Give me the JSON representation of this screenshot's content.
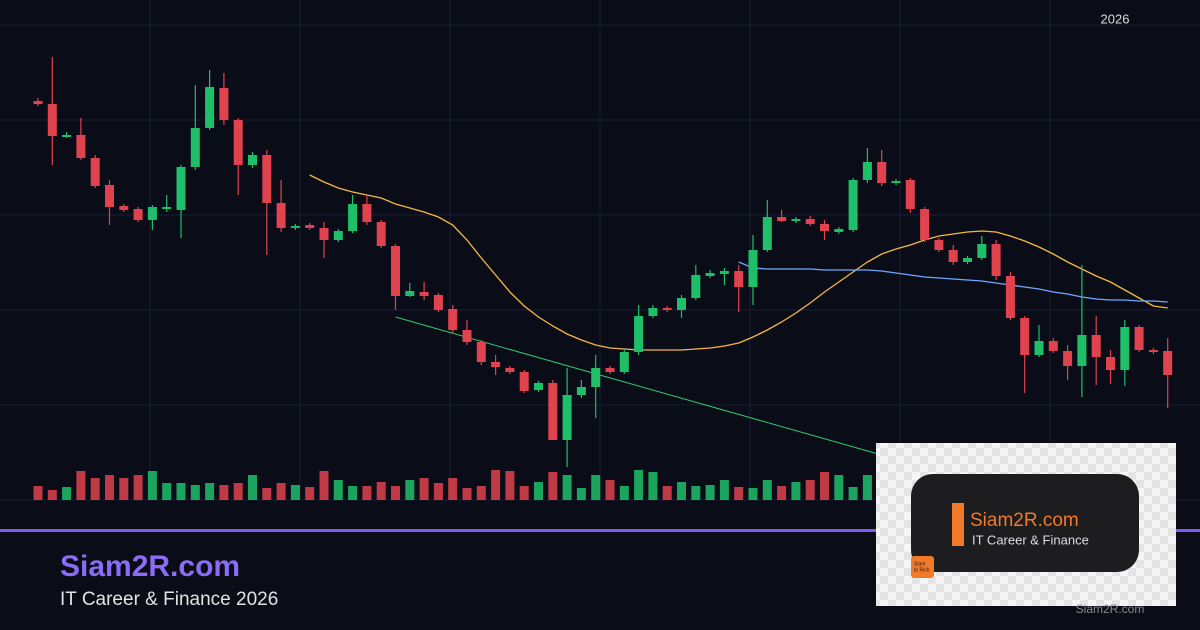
{
  "chart_data": {
    "type": "candlestick",
    "period_label": "2026",
    "up_color": "#1fbf6a",
    "down_color": "#e0434e",
    "ylim": [
      0,
      475
    ],
    "yticks": [
      0,
      95,
      190,
      285,
      380,
      475
    ],
    "grid": true,
    "open": [
      399,
      396,
      363,
      365,
      342,
      315,
      294,
      291,
      280,
      291,
      290,
      333,
      372,
      412,
      380,
      335,
      345,
      297,
      272,
      275,
      272,
      260,
      269,
      296,
      278,
      254,
      204,
      208,
      205,
      191,
      170,
      158,
      138,
      132,
      128,
      110,
      117,
      60,
      105,
      113,
      132,
      128,
      148,
      184,
      192,
      190,
      202,
      224,
      226,
      229,
      213,
      250,
      283,
      279,
      281,
      276,
      268,
      270,
      320,
      338,
      317,
      320,
      291,
      260,
      250,
      238,
      242,
      256,
      224,
      182,
      145,
      159,
      149,
      134,
      165,
      143,
      130,
      173,
      150,
      149
    ],
    "high": [
      402,
      443,
      368,
      382,
      345,
      320,
      296,
      293,
      295,
      305,
      335,
      415,
      430,
      427,
      382,
      348,
      350,
      320,
      276,
      277,
      278,
      271,
      305,
      305,
      280,
      256,
      217,
      218,
      207,
      195,
      180,
      160,
      145,
      134,
      130,
      119,
      120,
      132,
      120,
      145,
      134,
      150,
      195,
      195,
      194,
      205,
      235,
      230,
      232,
      235,
      265,
      300,
      290,
      283,
      284,
      280,
      273,
      322,
      352,
      350,
      321,
      322,
      293,
      262,
      255,
      244,
      264,
      260,
      228,
      184,
      175,
      162,
      155,
      235,
      184,
      150,
      180,
      175,
      152,
      162
    ],
    "low": [
      394,
      335,
      362,
      340,
      312,
      275,
      288,
      278,
      270,
      288,
      262,
      330,
      370,
      375,
      305,
      332,
      245,
      268,
      270,
      270,
      242,
      258,
      267,
      275,
      252,
      190,
      203,
      200,
      188,
      167,
      155,
      135,
      125,
      126,
      107,
      108,
      60,
      33,
      102,
      82,
      126,
      126,
      145,
      182,
      188,
      182,
      200,
      222,
      215,
      188,
      195,
      248,
      278,
      277,
      274,
      260,
      266,
      268,
      317,
      314,
      315,
      287,
      258,
      248,
      235,
      236,
      240,
      220,
      180,
      107,
      143,
      147,
      120,
      103,
      115,
      116,
      114,
      148,
      146,
      92
    ],
    "close": [
      396,
      364,
      365,
      342,
      314,
      293,
      290,
      280,
      293,
      293,
      333,
      372,
      413,
      380,
      335,
      345,
      297,
      272,
      274,
      272,
      260,
      269,
      296,
      278,
      254,
      204,
      209,
      204,
      190,
      170,
      158,
      138,
      133,
      128,
      109,
      117,
      60,
      105,
      113,
      132,
      128,
      148,
      184,
      192,
      190,
      202,
      225,
      227,
      229,
      213,
      250,
      283,
      279,
      281,
      276,
      269,
      271,
      320,
      338,
      317,
      319,
      291,
      260,
      250,
      238,
      242,
      256,
      224,
      182,
      145,
      159,
      149,
      134,
      165,
      143,
      130,
      173,
      150,
      148,
      125
    ],
    "volume": [
      14,
      10,
      13,
      29,
      22,
      25,
      22,
      25,
      29,
      17,
      17,
      15,
      17,
      15,
      17,
      25,
      12,
      17,
      15,
      13,
      29,
      20,
      14,
      14,
      18,
      14,
      20,
      22,
      17,
      22,
      12,
      14,
      30,
      29,
      14,
      18,
      28,
      25,
      12,
      25,
      20,
      14,
      30,
      28,
      14,
      18,
      14,
      15,
      20,
      13,
      12,
      20,
      14,
      18,
      20,
      28,
      25,
      13,
      25,
      22,
      15,
      18,
      20,
      14,
      16,
      25,
      18,
      22,
      28,
      20,
      15,
      18,
      25,
      14,
      20,
      16,
      22,
      18,
      25,
      28
    ],
    "y2lim": [
      0,
      150
    ],
    "moving_averages": [
      {
        "color": "#f5b942",
        "values": [
          null,
          null,
          null,
          null,
          null,
          null,
          null,
          null,
          null,
          null,
          null,
          null,
          null,
          null,
          null,
          null,
          null,
          null,
          null,
          325,
          318,
          312,
          308,
          305,
          302,
          296,
          292,
          288,
          283,
          275,
          260,
          242,
          225,
          208,
          194,
          183,
          174,
          166,
          160,
          155,
          152,
          151,
          150,
          150,
          150,
          150,
          151,
          152,
          154,
          157,
          163,
          170,
          178,
          187,
          197,
          208,
          218,
          228,
          238,
          246,
          251,
          255,
          260,
          264,
          266,
          268,
          269,
          268,
          264,
          259,
          253,
          246,
          238,
          231,
          224,
          218,
          210,
          202,
          194,
          192
        ]
      },
      {
        "color": "#6fa8ff",
        "values": [
          null,
          null,
          null,
          null,
          null,
          null,
          null,
          null,
          null,
          null,
          null,
          null,
          null,
          null,
          null,
          null,
          null,
          null,
          null,
          null,
          null,
          null,
          null,
          null,
          null,
          null,
          null,
          null,
          null,
          null,
          null,
          null,
          null,
          null,
          null,
          null,
          null,
          null,
          null,
          null,
          null,
          null,
          null,
          null,
          null,
          null,
          null,
          null,
          null,
          238,
          232,
          231,
          231,
          231,
          231,
          230,
          230,
          230,
          230,
          229,
          227,
          225,
          223,
          222,
          221,
          220,
          219,
          217,
          215,
          213,
          211,
          208,
          206,
          203,
          201,
          200,
          200,
          199,
          199,
          198
        ]
      }
    ],
    "trendline": {
      "color": "#2ecc71",
      "x": [
        25,
        59
      ],
      "values": [
        183,
        45
      ]
    }
  },
  "branding": {
    "title": "Siam2R.com",
    "subtitle": "IT Career & Finance 2026",
    "card_title": "Siam2R.com",
    "card_subtitle": "IT Career & Finance",
    "logo_lines": [
      "Siam",
      "to Rich"
    ],
    "footer": "Siam2R.com"
  }
}
